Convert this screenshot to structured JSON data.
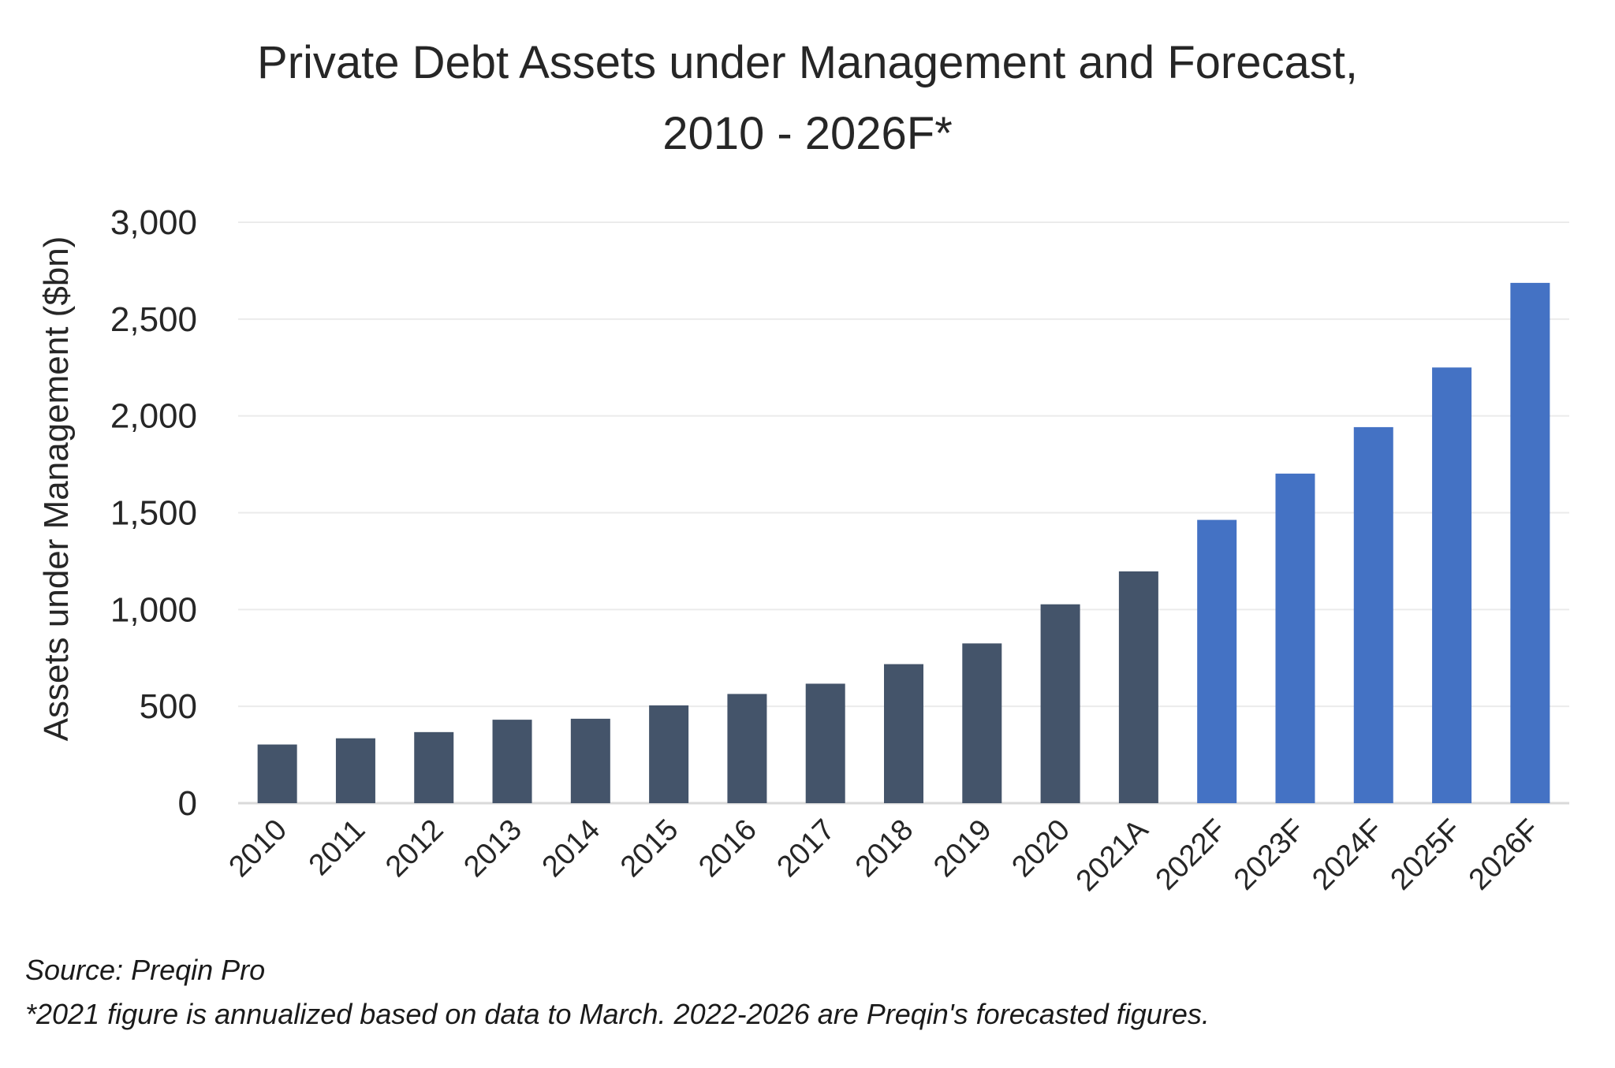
{
  "chart_data": {
    "type": "bar",
    "title_line1": "Private Debt Assets under Management and Forecast,",
    "title_line2": "2010 - 2026F*",
    "xlabel": "",
    "ylabel": "Assets under Management ($bn)",
    "ylim": [
      0,
      3000
    ],
    "yticks": [
      0,
      500,
      1000,
      1500,
      2000,
      2500,
      3000
    ],
    "ytick_labels": [
      "0",
      "500",
      "1,000",
      "1,500",
      "2,000",
      "2,500",
      "3,000"
    ],
    "grid": true,
    "categories": [
      "2010",
      "2011",
      "2012",
      "2013",
      "2014",
      "2015",
      "2016",
      "2017",
      "2018",
      "2019",
      "2020",
      "2021A",
      "2022F",
      "2023F",
      "2024F",
      "2025F",
      "2026F"
    ],
    "values": [
      303,
      335,
      367,
      431,
      436,
      505,
      564,
      617,
      718,
      825,
      1027,
      1197,
      1463,
      1702,
      1942,
      2250,
      2687
    ],
    "kind": [
      "actual",
      "actual",
      "actual",
      "actual",
      "actual",
      "actual",
      "actual",
      "actual",
      "actual",
      "actual",
      "actual",
      "actual",
      "forecast",
      "forecast",
      "forecast",
      "forecast",
      "forecast"
    ],
    "colors": {
      "actual": "#44546A",
      "forecast": "#4472C4",
      "grid": "#EBEBEB",
      "axis": "#D9D9D9"
    }
  },
  "notes": {
    "source": "Source: Preqin Pro",
    "footnote": "*2021 figure is annualized based on data to March. 2022-2026 are Preqin's forecasted figures."
  }
}
